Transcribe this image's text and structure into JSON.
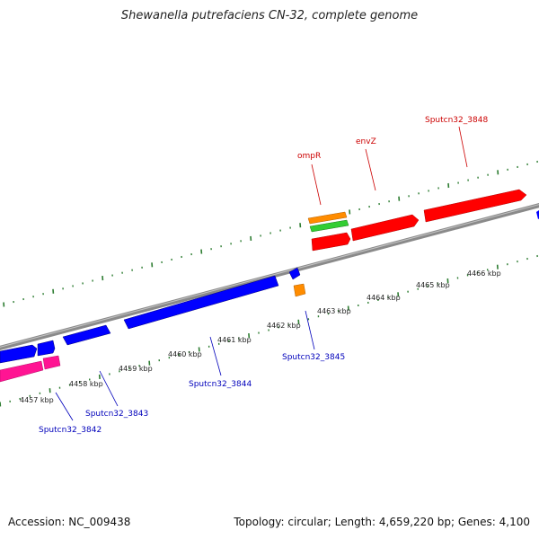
{
  "title": "Shewanella putrefaciens CN-32, complete genome",
  "footer": {
    "accession": "Accession: NC_009438",
    "stats": "Topology: circular; Length: 4,659,220 bp; Genes: 4,100"
  },
  "colors": {
    "backbone": "#8a8a8a",
    "tick": "#2e7d32",
    "forward_label": "#cc0000",
    "reverse_label": "#0000bb"
  },
  "scale": {
    "unit": "kbp",
    "labels": [
      "4457 kbp",
      "4458 kbp",
      "4459 kbp",
      "4460 kbp",
      "4461 kbp",
      "4462 kbp",
      "4463 kbp",
      "4464 kbp",
      "4465 kbp",
      "4466 kbp"
    ]
  },
  "genes": [
    {
      "label": "ompR",
      "strand": "+",
      "color": "#ff0000"
    },
    {
      "label": "envZ",
      "strand": "+",
      "color": "#ff0000"
    },
    {
      "label": "Sputcn32_3848",
      "strand": "+",
      "color": "#ff0000"
    },
    {
      "label": "Sputcn32_3842",
      "strand": "-",
      "color": "#0000ff"
    },
    {
      "label": "Sputcn32_3843",
      "strand": "-",
      "color": "#0000ff"
    },
    {
      "label": "Sputcn32_3844",
      "strand": "-",
      "color": "#0000ff"
    },
    {
      "label": "Sputcn32_3845",
      "strand": "-",
      "color": "#0000ff"
    }
  ],
  "feature_colors": [
    "#ff0000",
    "#0000ff",
    "#ff1493",
    "#ff8c00",
    "#32cd32"
  ]
}
